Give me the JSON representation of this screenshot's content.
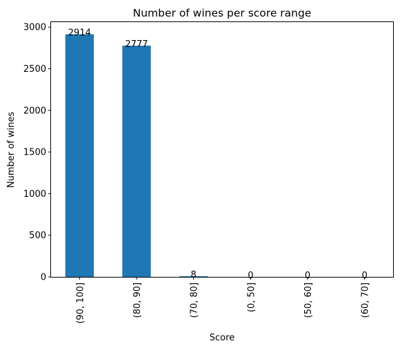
{
  "chart_data": {
    "type": "bar",
    "title": "Number of wines per score range",
    "xlabel": "Score",
    "ylabel": "Number of wines",
    "categories": [
      "(90, 100]",
      "(80, 90]",
      "(70, 80]",
      "(0, 50]",
      "(50, 60]",
      "(60, 70]"
    ],
    "values": [
      2914,
      2777,
      8,
      0,
      0,
      0
    ],
    "data_labels": [
      "2914",
      "2777",
      "8",
      "0",
      "0",
      "0"
    ],
    "ylim": [
      0,
      3060
    ],
    "yticks": [
      0,
      500,
      1000,
      1500,
      2000,
      2500,
      3000
    ],
    "ytick_labels": [
      "0",
      "500",
      "1000",
      "1500",
      "2000",
      "2500",
      "3000"
    ],
    "bar_color": "#1f77b4",
    "grid": false,
    "legend": "none"
  }
}
